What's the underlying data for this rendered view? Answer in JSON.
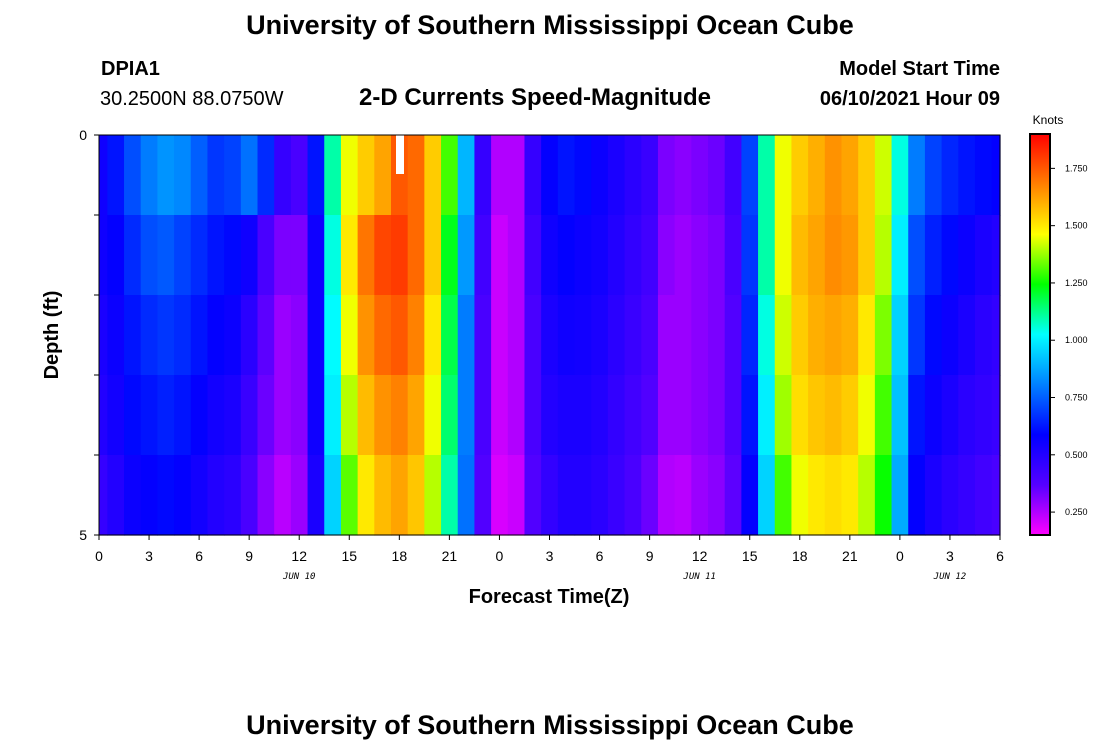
{
  "header": {
    "title": "University of Southern Mississippi Ocean Cube",
    "station": "DPIA1",
    "coords": "30.2500N  88.0750W",
    "plot_title": "2-D Currents Speed-Magnitude",
    "model_label": "Model Start Time",
    "model_time": "06/10/2021 Hour 09"
  },
  "footer": {
    "title": "University of Southern Mississippi Ocean Cube"
  },
  "chart_data": {
    "type": "heatmap",
    "title": "2-D Currents Speed-Magnitude",
    "xlabel": "Forecast Time(Z)",
    "ylabel": "Depth (ft)",
    "ylim": [
      0,
      5
    ],
    "y_tick_labels": [
      "0",
      "5"
    ],
    "x_tick_labels": [
      "0",
      "3",
      "6",
      "9",
      "12",
      "15",
      "18",
      "21",
      "0",
      "3",
      "6",
      "9",
      "12",
      "15",
      "18",
      "21",
      "0",
      "3",
      "6"
    ],
    "date_labels": [
      "JUN 10",
      "JUN 11",
      "JUN 12"
    ],
    "x_hours": [
      0,
      1,
      2,
      3,
      4,
      5,
      6,
      7,
      8,
      9,
      10,
      11,
      12,
      13,
      14,
      15,
      16,
      17,
      18,
      19,
      20,
      21,
      22,
      23,
      24,
      25,
      26,
      27,
      28,
      29,
      30,
      31,
      32,
      33,
      34,
      35,
      36,
      37,
      38,
      39,
      40,
      41,
      42,
      43,
      44,
      45,
      46,
      47,
      48,
      49,
      50,
      51,
      52,
      53,
      54
    ],
    "depth_layers": [
      0.5,
      1.5,
      2.5,
      3.5,
      4.5
    ],
    "colorbar": {
      "unit": "Knots",
      "min": 0.15,
      "max": 1.9,
      "ticks": [
        "0.250",
        "0.500",
        "0.750",
        "1.000",
        "1.250",
        "1.500",
        "1.750"
      ],
      "colors": [
        "#ff00ff",
        "#5500ff",
        "#0000ff",
        "#0080ff",
        "#00ffff",
        "#00ff00",
        "#ffff00",
        "#ff8000",
        "#ff0000"
      ]
    },
    "values": [
      [
        0.55,
        0.62,
        0.72,
        0.8,
        0.84,
        0.82,
        0.75,
        0.68,
        0.7,
        0.78,
        0.66,
        0.45,
        0.4,
        0.62,
        1.1,
        1.45,
        1.55,
        1.62,
        1.75,
        1.72,
        1.55,
        1.3,
        0.9,
        0.45,
        0.25,
        0.25,
        0.45,
        0.58,
        0.62,
        0.6,
        0.56,
        0.52,
        0.48,
        0.44,
        0.32,
        0.3,
        0.32,
        0.34,
        0.42,
        0.7,
        1.1,
        1.45,
        1.55,
        1.6,
        1.65,
        1.62,
        1.55,
        1.42,
        1.05,
        0.8,
        0.7,
        0.65,
        0.62,
        0.6,
        0.58
      ],
      [
        0.55,
        0.58,
        0.66,
        0.72,
        0.74,
        0.7,
        0.66,
        0.62,
        0.6,
        0.55,
        0.4,
        0.32,
        0.32,
        0.55,
        1.05,
        1.5,
        1.7,
        1.78,
        1.8,
        1.72,
        1.55,
        1.22,
        0.85,
        0.42,
        0.22,
        0.25,
        0.42,
        0.55,
        0.58,
        0.56,
        0.54,
        0.5,
        0.46,
        0.42,
        0.3,
        0.28,
        0.3,
        0.32,
        0.4,
        0.68,
        1.1,
        1.45,
        1.58,
        1.62,
        1.66,
        1.64,
        1.55,
        1.4,
        1.0,
        0.72,
        0.64,
        0.6,
        0.56,
        0.52,
        0.5
      ],
      [
        0.52,
        0.56,
        0.62,
        0.66,
        0.68,
        0.66,
        0.62,
        0.58,
        0.56,
        0.48,
        0.36,
        0.28,
        0.3,
        0.55,
        1.02,
        1.45,
        1.65,
        1.72,
        1.75,
        1.68,
        1.5,
        1.18,
        0.8,
        0.4,
        0.22,
        0.25,
        0.4,
        0.52,
        0.55,
        0.54,
        0.52,
        0.48,
        0.44,
        0.4,
        0.28,
        0.28,
        0.3,
        0.32,
        0.38,
        0.65,
        1.05,
        1.42,
        1.55,
        1.6,
        1.62,
        1.6,
        1.5,
        1.35,
        0.95,
        0.68,
        0.6,
        0.56,
        0.52,
        0.48,
        0.46
      ],
      [
        0.5,
        0.54,
        0.6,
        0.62,
        0.64,
        0.62,
        0.58,
        0.54,
        0.52,
        0.44,
        0.34,
        0.28,
        0.3,
        0.55,
        1.0,
        1.4,
        1.58,
        1.65,
        1.68,
        1.62,
        1.45,
        1.15,
        0.8,
        0.4,
        0.22,
        0.25,
        0.4,
        0.5,
        0.52,
        0.52,
        0.5,
        0.46,
        0.42,
        0.38,
        0.28,
        0.28,
        0.3,
        0.32,
        0.38,
        0.62,
        1.0,
        1.38,
        1.52,
        1.56,
        1.58,
        1.55,
        1.45,
        1.3,
        0.92,
        0.62,
        0.56,
        0.52,
        0.48,
        0.46,
        0.44
      ],
      [
        0.45,
        0.5,
        0.56,
        0.58,
        0.6,
        0.58,
        0.54,
        0.5,
        0.48,
        0.4,
        0.3,
        0.24,
        0.28,
        0.52,
        0.95,
        1.32,
        1.5,
        1.58,
        1.62,
        1.56,
        1.4,
        1.1,
        0.78,
        0.38,
        0.2,
        0.22,
        0.38,
        0.46,
        0.5,
        0.5,
        0.48,
        0.44,
        0.4,
        0.34,
        0.25,
        0.24,
        0.28,
        0.3,
        0.36,
        0.58,
        0.95,
        1.3,
        1.45,
        1.5,
        1.52,
        1.5,
        1.4,
        1.25,
        0.88,
        0.58,
        0.52,
        0.48,
        0.45,
        0.42,
        0.4
      ]
    ]
  }
}
